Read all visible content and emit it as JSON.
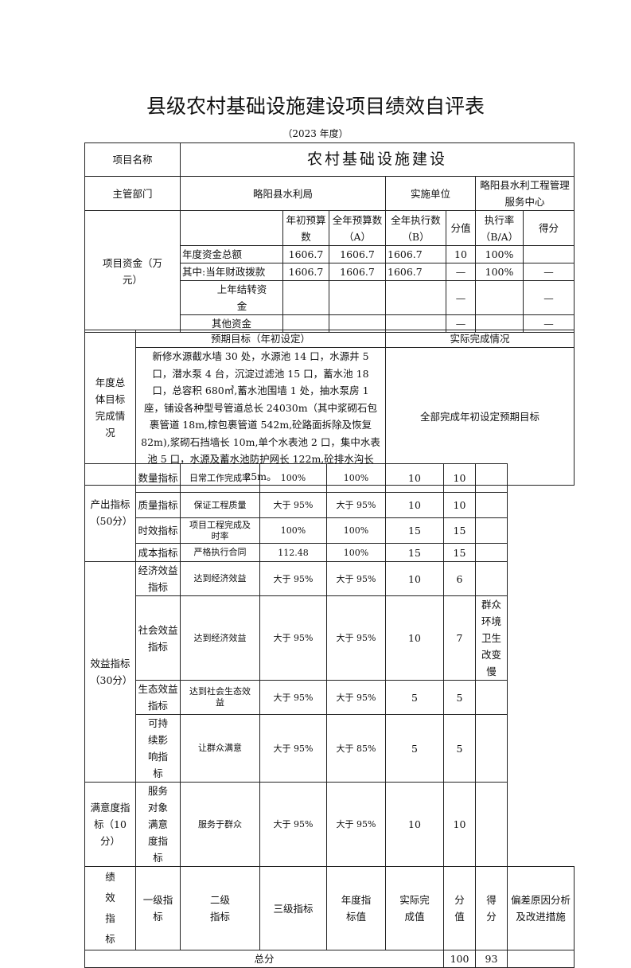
{
  "title": "县级农村基础设施建设项目绩效自评表",
  "subtitle": "（2023 年度）",
  "project": {
    "name_label": "项目名称",
    "name": "农村基础设施建设",
    "dept_label": "主管部门",
    "dept": "略阳县水利局",
    "unit_label": "实施单位",
    "unit": "略阳县水利工程管理服务中心"
  },
  "funds": {
    "label": "项目资金（万元）",
    "headers": [
      "年初预算数",
      "全年预算数（A）",
      "全年执行数（B）",
      "分值",
      "执行率（B/A）",
      "得分"
    ],
    "rows": [
      {
        "name": "年度资金总额",
        "init": "1606.7",
        "budget": "1606.7",
        "exec": "1606.7",
        "score_value": "10",
        "rate": "100%",
        "score": ""
      },
      {
        "name": "其中:当年财政拨款",
        "init": "1606.7",
        "budget": "1606.7",
        "exec": "1606.7",
        "score_value": "—",
        "rate": "100%",
        "score": "—"
      },
      {
        "name": "上年结转资金",
        "init": "",
        "budget": "",
        "exec": "",
        "score_value": "—",
        "rate": "",
        "score": "—"
      },
      {
        "name": "其他资金",
        "init": "",
        "budget": "",
        "exec": "",
        "score_value": "—",
        "rate": "",
        "score": "—"
      }
    ]
  },
  "goals": {
    "label": "年度总体目标完成情况",
    "expected_header": "预期目标（年初设定）",
    "actual_header": "实际完成情况",
    "expected": "新修水源截水墙 30 处，水源池 14 口，水源井 5 口，潜水泵 4 台，沉淀过滤池 15 口，蓄水池 18 口，总容积 680㎥,蓄水池围墙 1 处，抽水泵房 1 座，铺设各种型号管道总长 24030m（其中浆砌石包裹管道 18m,棕包裹管道 542m,砼路面拆除及恢复 82m),浆砌石挡墙长 10m,单个水表池 2 口，集中水表池 5 口，水源及蓄水池防护网长 122m,砼排水沟长 25m。",
    "actual": "全部完成年初设定预期目标"
  },
  "performance": {
    "label": "绩效指标",
    "headers": [
      "一级指标",
      "二级指标",
      "三级指标",
      "年度指标值",
      "实际完成值",
      "分值",
      "得分",
      "偏差原因分析及改进措施"
    ],
    "groups": [
      "产出指标（50分）",
      "效益指标（30分）",
      "满意度指标（10分）"
    ],
    "rows": [
      {
        "l2": "数量指标",
        "l3": "日常工作完成率",
        "target": "100%",
        "actual": "100%",
        "value": "10",
        "score": "10",
        "reason": ""
      },
      {
        "l2": "质量指标",
        "l3": "保证工程质量",
        "target": "大于 95%",
        "actual": "大于 95%",
        "value": "10",
        "score": "10",
        "reason": ""
      },
      {
        "l2": "时效指标",
        "l3": "项目工程完成及时率",
        "target": "100%",
        "actual": "100%",
        "value": "15",
        "score": "15",
        "reason": ""
      },
      {
        "l2": "成本指标",
        "l3": "严格执行合同",
        "target": "112.48",
        "actual": "100%",
        "value": "15",
        "score": "15",
        "reason": ""
      },
      {
        "l2": "经济效益指标",
        "l3": "达到经济效益",
        "target": "大于 95%",
        "actual": "大于 95%",
        "value": "10",
        "score": "6",
        "reason": ""
      },
      {
        "l2": "社会效益指标",
        "l3": "达到经济效益",
        "target": "大于 95%",
        "actual": "大于 95%",
        "value": "10",
        "score": "7",
        "reason": "群众环境卫生改变慢"
      },
      {
        "l2": "生态效益指标",
        "l3": "达到社会生态效益",
        "target": "大于 95%",
        "actual": "大于 95%",
        "value": "5",
        "score": "5",
        "reason": ""
      },
      {
        "l2": "可持续影响指标",
        "l3": "让群众满意",
        "target": "大于 95%",
        "actual": "大于 85%",
        "value": "5",
        "score": "5",
        "reason": ""
      },
      {
        "l2": "服务对象满意度指标",
        "l3": "服务于群众",
        "target": "大于 95%",
        "actual": "大于 95%",
        "value": "10",
        "score": "10",
        "reason": ""
      }
    ],
    "total_label": "总分",
    "total_value": "100",
    "total_score": "93"
  }
}
